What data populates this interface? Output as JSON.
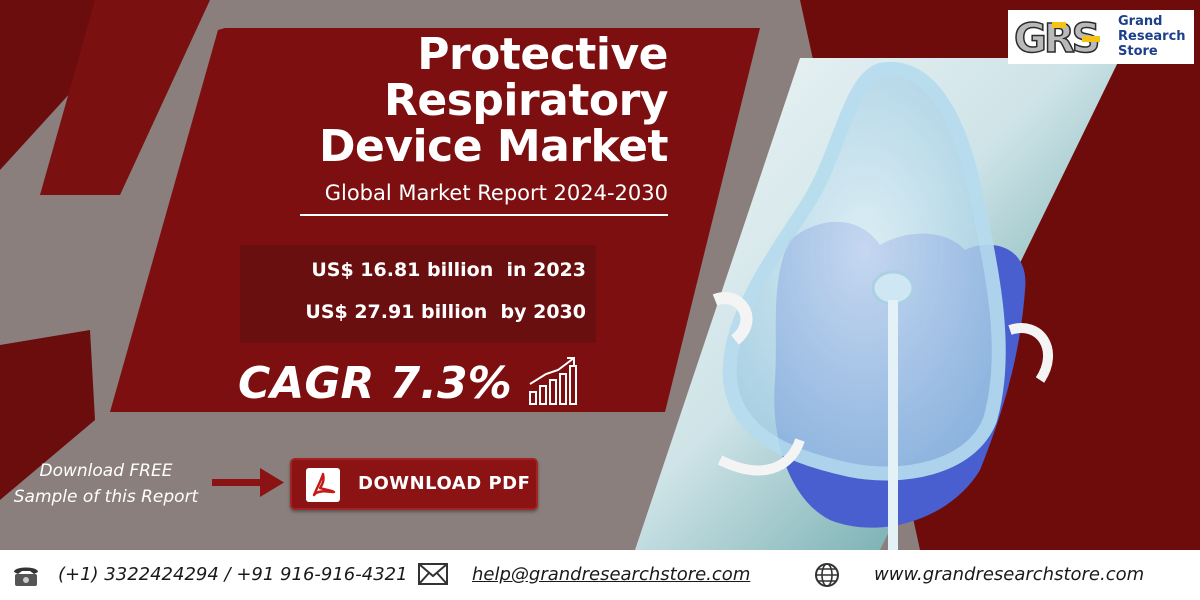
{
  "banner": {
    "title_lines": [
      "Protective",
      "Respiratory",
      "Device Market"
    ],
    "subtitle": "Global Market Report 2024-2030",
    "stats": {
      "line1": "US$ 16.81 billion  in 2023",
      "line2": "US$ 27.91 billion  by 2030"
    },
    "cagr": "CAGR 7.3%",
    "download_prompt_line1": "Download FREE",
    "download_prompt_line2": "Sample of this Report",
    "download_button_label": "DOWNLOAD PDF"
  },
  "logo": {
    "mark": "GRS",
    "text_lines": [
      "Grand",
      "Research",
      "Store"
    ]
  },
  "footer": {
    "phone": "(+1) 3322424294 / +91 916-916-4321",
    "email": "help@grandresearchstore.com",
    "website": "www.grandresearchstore.com"
  },
  "icons": {
    "growth": "bar-chart-growth-icon",
    "pdf": "pdf-icon",
    "arrow": "right-arrow-icon",
    "phone": "telephone-icon",
    "email": "envelope-icon",
    "web": "globe-icon"
  },
  "colors": {
    "maroon": "#7d0f10",
    "dark_maroon": "#5e0a0a",
    "gray": "#8a7f7c",
    "white": "#ffffff"
  }
}
